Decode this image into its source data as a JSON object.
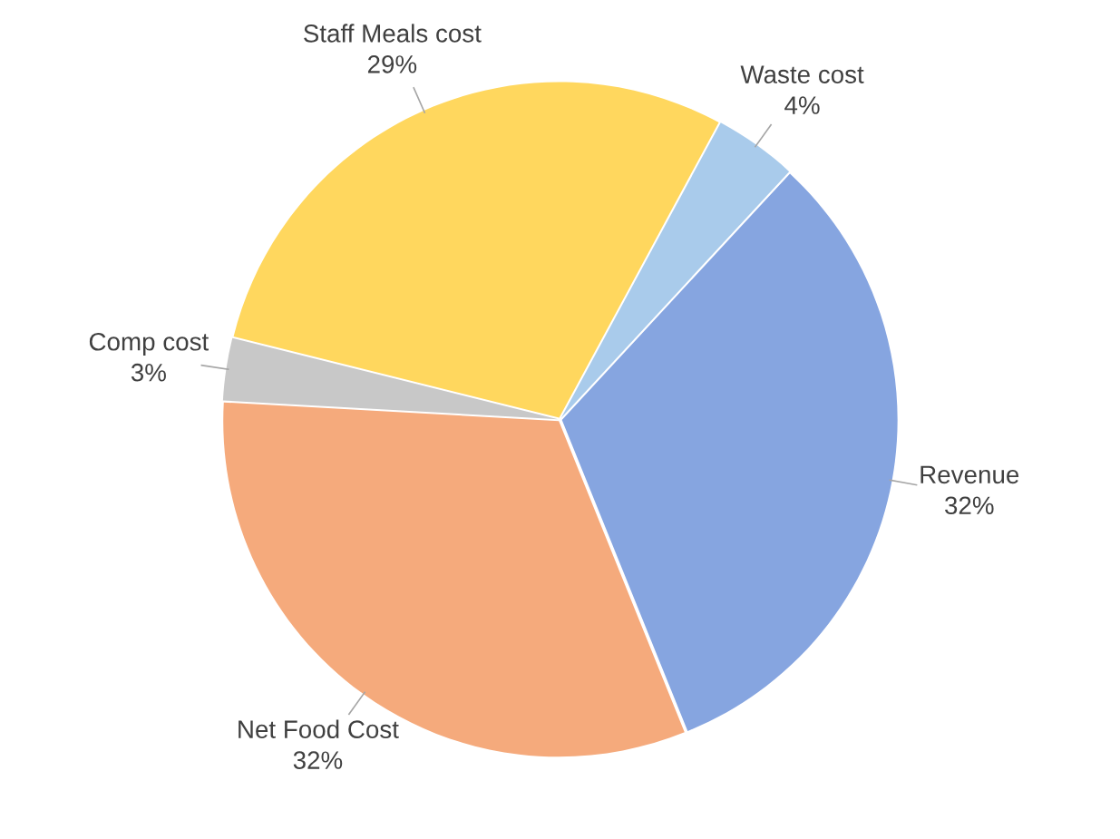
{
  "chart_data": {
    "type": "pie",
    "categories": [
      "Waste cost",
      "Revenue",
      "Net Food Cost",
      "Comp cost",
      "Staff Meals cost"
    ],
    "values": [
      4,
      32,
      32,
      3,
      29
    ],
    "colors": [
      "#a9cbeb",
      "#86a5e0",
      "#f5aa7c",
      "#c8c8c8",
      "#ffd75e"
    ],
    "value_labels": [
      "4%",
      "32%",
      "32%",
      "3%",
      "29%"
    ]
  }
}
